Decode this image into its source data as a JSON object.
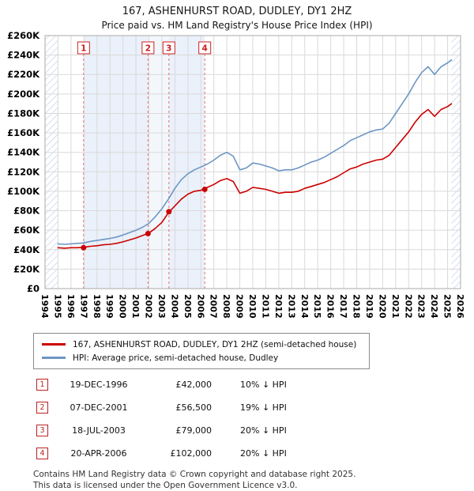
{
  "chart_data": {
    "type": "line",
    "title": "167, ASHENHURST ROAD, DUDLEY, DY1 2HZ",
    "subtitle": "Price paid vs. HM Land Registry's House Price Index (HPI)",
    "xlim": [
      1994,
      2026
    ],
    "ylim_k": [
      0,
      260
    ],
    "y_tick_step_k": 20,
    "y_tick_prefix": "£",
    "y_tick_suffix": "K",
    "grid": true,
    "legend_position": "bottom",
    "x": [
      1995,
      1995.5,
      1996,
      1996.5,
      1997,
      1997.5,
      1998,
      1998.5,
      1999,
      1999.5,
      2000,
      2000.5,
      2001,
      2001.5,
      2002,
      2002.5,
      2003,
      2003.5,
      2004,
      2004.5,
      2005,
      2005.5,
      2006,
      2006.5,
      2007,
      2007.5,
      2008,
      2008.5,
      2009,
      2009.5,
      2010,
      2010.5,
      2011,
      2011.5,
      2012,
      2012.5,
      2013,
      2013.5,
      2014,
      2014.5,
      2015,
      2015.5,
      2016,
      2016.5,
      2017,
      2017.5,
      2018,
      2018.5,
      2019,
      2019.5,
      2020,
      2020.5,
      2021,
      2021.5,
      2022,
      2022.5,
      2023,
      2023.5,
      2024,
      2024.5,
      2025,
      2025.3
    ],
    "values_unit": "GBP_thousands",
    "series": [
      {
        "name": "167, ASHENHURST ROAD, DUDLEY, DY1 2HZ (semi-detached house)",
        "color": "#cc0000",
        "values": [
          42,
          41.5,
          42,
          42,
          42.5,
          43.5,
          44,
          45,
          45.5,
          46.5,
          48,
          50,
          52,
          54.5,
          57,
          62,
          68,
          78,
          85,
          92,
          97,
          100,
          101,
          104,
          107,
          111,
          113,
          110,
          98,
          100,
          104,
          103,
          102,
          100,
          98,
          99,
          99,
          100,
          103,
          105,
          107,
          109,
          112,
          115,
          119,
          123,
          125,
          128,
          130,
          132,
          133,
          137,
          145,
          153,
          161,
          171,
          179,
          184,
          177,
          184,
          187,
          190
        ]
      },
      {
        "name": "HPI: Average price, semi-detached house, Dudley",
        "color": "#6d96c4",
        "values": [
          46,
          45.5,
          46,
          46.5,
          47,
          48.5,
          49.5,
          50.5,
          51.5,
          53,
          55,
          57.5,
          60,
          63,
          67,
          74,
          82,
          92,
          103,
          112,
          118,
          122,
          125,
          128,
          132,
          137,
          140,
          136,
          122,
          124,
          129,
          128,
          126,
          124,
          121,
          122,
          122,
          124,
          127,
          130,
          132,
          135,
          139,
          143,
          147,
          152,
          155,
          158,
          161,
          163,
          164,
          170,
          180,
          190,
          200,
          212,
          222,
          228,
          220,
          228,
          232,
          235
        ]
      }
    ],
    "sales": [
      {
        "n": "1",
        "x": 1996.97,
        "value_k": 42,
        "price": "£42,000"
      },
      {
        "n": "2",
        "x": 2001.93,
        "value_k": 56.5,
        "price": "£56,500"
      },
      {
        "n": "3",
        "x": 2003.54,
        "value_k": 79,
        "price": "£79,000"
      },
      {
        "n": "4",
        "x": 2006.3,
        "value_k": 102,
        "price": "£102,000"
      }
    ],
    "bands": [
      {
        "from": 1996.97,
        "to": 2001.93,
        "color": "#eaf1fa"
      },
      {
        "from": 2001.93,
        "to": 2003.54,
        "color": "#f3f7fc"
      },
      {
        "from": 2003.54,
        "to": 2006.3,
        "color": "#eaf1fa"
      }
    ],
    "hatch_regions": [
      [
        1994,
        1995
      ],
      [
        2025.3,
        2026
      ]
    ],
    "colors": {
      "hatch": "#c3d0e5",
      "grid": "#d9d9d9",
      "border": "#aaaaaa",
      "sale_line": "#e87070",
      "sale_box": "#cc2222",
      "sale_dot": "#cc0000"
    }
  },
  "transactions": [
    {
      "n": "1",
      "date": "19-DEC-1996",
      "price": "£42,000",
      "hpi": "10% ↓ HPI"
    },
    {
      "n": "2",
      "date": "07-DEC-2001",
      "price": "£56,500",
      "hpi": "19% ↓ HPI"
    },
    {
      "n": "3",
      "date": "18-JUL-2003",
      "price": "£79,000",
      "hpi": "20% ↓ HPI"
    },
    {
      "n": "4",
      "date": "20-APR-2006",
      "price": "£102,000",
      "hpi": "20% ↓ HPI"
    }
  ],
  "footer": {
    "line1": "Contains HM Land Registry data © Crown copyright and database right 2025.",
    "line2": "This data is licensed under the Open Government Licence v3.0."
  }
}
